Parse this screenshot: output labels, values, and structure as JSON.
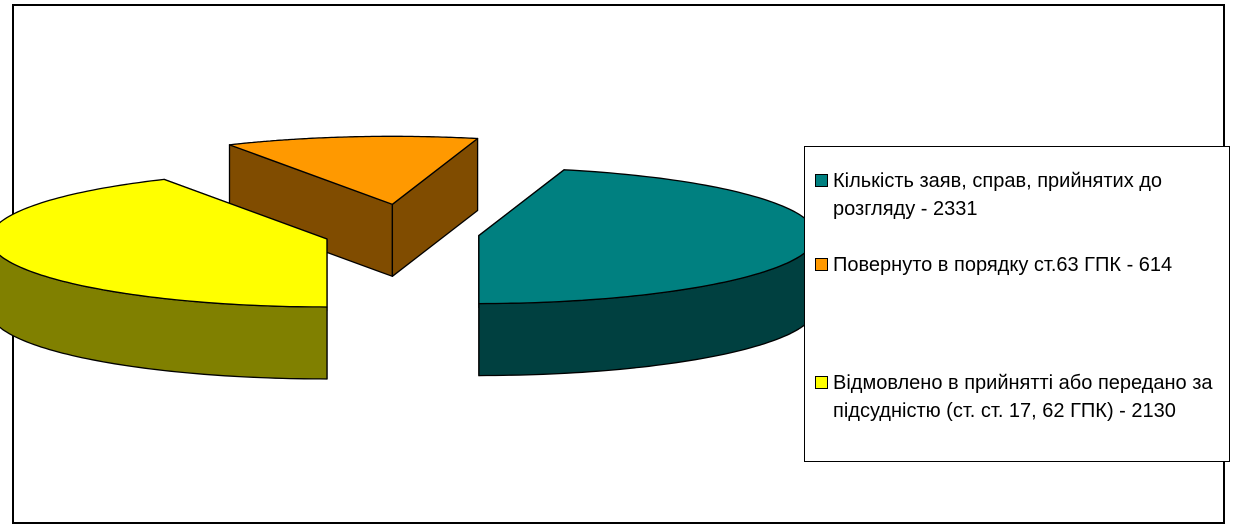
{
  "chart_data": {
    "type": "pie",
    "title": "",
    "slices": [
      {
        "label": "Кількість заяв, справ, прийнятих до розгляду - 2331",
        "value": 2331,
        "color": "#008080",
        "side_color": "#004040"
      },
      {
        "label": "Повернуто в порядку ст.63 ГПК - 614",
        "value": 614,
        "color": "#FF9900",
        "side_color": "#804C00"
      },
      {
        "label": "Відмовлено в прийнятті або передано за підсудністю (ст. ст. 17, 62 ГПК) - 2130",
        "value": 2130,
        "color": "#FFFF00",
        "side_color": "#808000"
      }
    ],
    "style": "3d-exploded",
    "legend_position": "right"
  }
}
